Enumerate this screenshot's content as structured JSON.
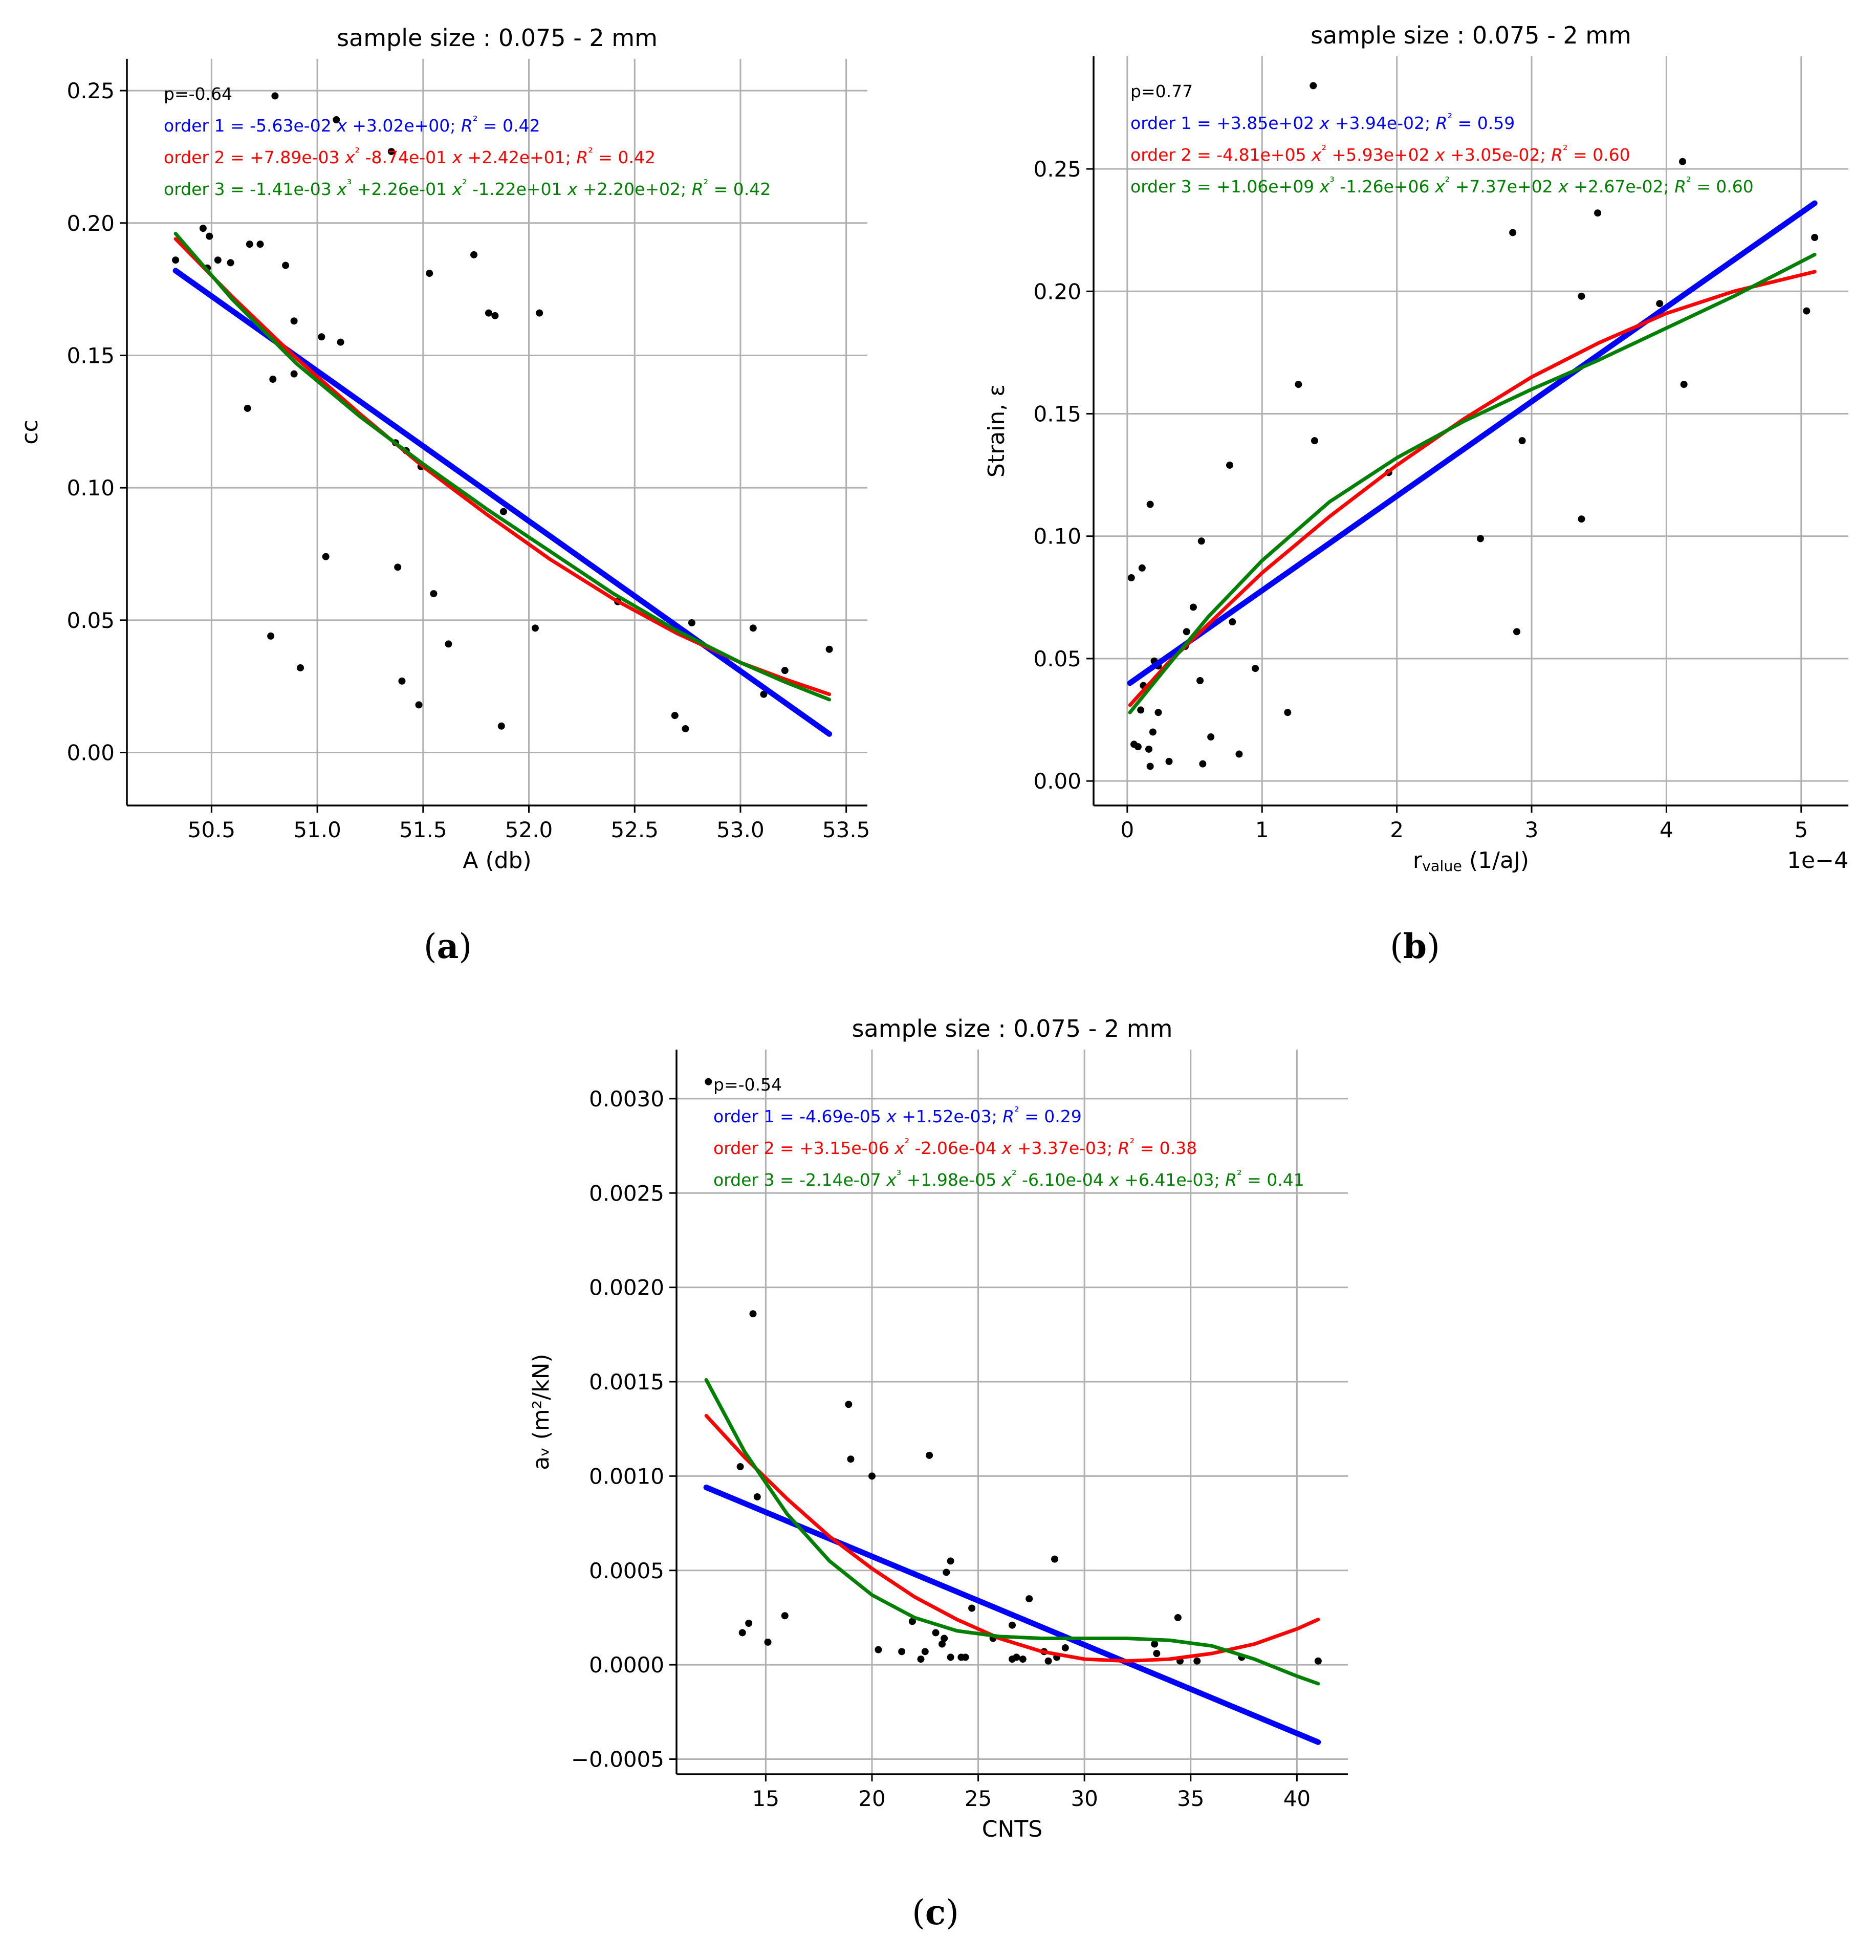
{
  "colors": {
    "background": "#ffffff",
    "points": "#000000",
    "grid": "#b0b0b0",
    "axis": "#000000",
    "order1": "#0000ff",
    "order2": "#ff0000",
    "order3": "#008000"
  },
  "chart_data": [
    {
      "type": "scatter",
      "panel_label": "(a)",
      "title": "sample size : 0.075 - 2 mm",
      "xlabel": "A (db)",
      "ylabel": "cc",
      "xlim": [
        50.1,
        53.6
      ],
      "ylim": [
        -0.02,
        0.262
      ],
      "xticks": [
        50.5,
        51.0,
        51.5,
        52.0,
        52.5,
        53.0,
        53.5
      ],
      "yticks": [
        0.0,
        0.05,
        0.1,
        0.15,
        0.2,
        0.25
      ],
      "xtick_labels": [
        "50.5",
        "51.0",
        "51.5",
        "52.0",
        "52.5",
        "53.0",
        "53.5"
      ],
      "ytick_labels": [
        "0.00",
        "0.05",
        "0.10",
        "0.15",
        "0.20",
        "0.25"
      ],
      "scale_label": "",
      "grid": true,
      "annotations": {
        "p": "p=-0.64",
        "order1": "order 1 = -5.63e-02 x +3.02e+00;  R² = 0.42",
        "order2": "order 2 = +7.89e-03 x² -8.74e-01 x  +2.42e+01;  R² = 0.42",
        "order3": "order 3 = -1.41e-03 x³ +2.26e-01 x² -1.22e+01 x +2.20e+02;  R² = 0.42"
      },
      "fits": [
        {
          "name": "order 1",
          "color": "#0000ff",
          "x": [
            50.33,
            53.42
          ],
          "y": [
            0.182,
            0.007
          ]
        },
        {
          "name": "order 2",
          "color": "#ff0000",
          "x": [
            50.33,
            50.6,
            50.9,
            51.2,
            51.5,
            51.8,
            52.1,
            52.4,
            52.7,
            53.0,
            53.2,
            53.42
          ],
          "y": [
            0.194,
            0.172,
            0.149,
            0.128,
            0.108,
            0.09,
            0.073,
            0.058,
            0.045,
            0.034,
            0.028,
            0.022
          ]
        },
        {
          "name": "order 3",
          "color": "#008000",
          "x": [
            50.33,
            50.6,
            50.9,
            51.2,
            51.5,
            51.8,
            52.1,
            52.4,
            52.7,
            53.0,
            53.2,
            53.42
          ],
          "y": [
            0.196,
            0.171,
            0.147,
            0.127,
            0.109,
            0.092,
            0.076,
            0.06,
            0.046,
            0.034,
            0.027,
            0.02
          ]
        }
      ],
      "points": [
        {
          "x": 50.33,
          "y": 0.186
        },
        {
          "x": 50.46,
          "y": 0.198
        },
        {
          "x": 50.48,
          "y": 0.183
        },
        {
          "x": 50.49,
          "y": 0.195
        },
        {
          "x": 50.53,
          "y": 0.186
        },
        {
          "x": 50.59,
          "y": 0.185
        },
        {
          "x": 50.67,
          "y": 0.13
        },
        {
          "x": 50.68,
          "y": 0.192
        },
        {
          "x": 50.73,
          "y": 0.192
        },
        {
          "x": 50.78,
          "y": 0.044
        },
        {
          "x": 50.79,
          "y": 0.141
        },
        {
          "x": 50.8,
          "y": 0.248
        },
        {
          "x": 50.85,
          "y": 0.184
        },
        {
          "x": 50.89,
          "y": 0.163
        },
        {
          "x": 50.89,
          "y": 0.143
        },
        {
          "x": 50.92,
          "y": 0.032
        },
        {
          "x": 51.02,
          "y": 0.157
        },
        {
          "x": 51.04,
          "y": 0.074
        },
        {
          "x": 51.09,
          "y": 0.239
        },
        {
          "x": 51.11,
          "y": 0.155
        },
        {
          "x": 51.35,
          "y": 0.227
        },
        {
          "x": 51.37,
          "y": 0.117
        },
        {
          "x": 51.38,
          "y": 0.07
        },
        {
          "x": 51.4,
          "y": 0.027
        },
        {
          "x": 51.42,
          "y": 0.114
        },
        {
          "x": 51.48,
          "y": 0.018
        },
        {
          "x": 51.49,
          "y": 0.108
        },
        {
          "x": 51.53,
          "y": 0.181
        },
        {
          "x": 51.55,
          "y": 0.06
        },
        {
          "x": 51.62,
          "y": 0.041
        },
        {
          "x": 51.74,
          "y": 0.188
        },
        {
          "x": 51.81,
          "y": 0.166
        },
        {
          "x": 51.84,
          "y": 0.165
        },
        {
          "x": 51.87,
          "y": 0.01
        },
        {
          "x": 51.88,
          "y": 0.091
        },
        {
          "x": 52.03,
          "y": 0.047
        },
        {
          "x": 52.05,
          "y": 0.166
        },
        {
          "x": 52.42,
          "y": 0.057
        },
        {
          "x": 52.69,
          "y": 0.014
        },
        {
          "x": 52.74,
          "y": 0.009
        },
        {
          "x": 52.77,
          "y": 0.049
        },
        {
          "x": 53.06,
          "y": 0.047
        },
        {
          "x": 53.11,
          "y": 0.022
        },
        {
          "x": 53.21,
          "y": 0.031
        },
        {
          "x": 53.42,
          "y": 0.039
        }
      ]
    },
    {
      "type": "scatter",
      "panel_label": "(b)",
      "title": "sample size : 0.075 - 2 mm",
      "xlabel": "rvalue (1/aJ)",
      "xlabel_main": "r",
      "xlabel_sub": "value",
      "xlabel_rest": " (1/aJ)",
      "ylabel": "Strain, ε",
      "xlim": [
        -0.25,
        5.35
      ],
      "ylim": [
        -0.01,
        0.296
      ],
      "xticks": [
        0,
        1,
        2,
        3,
        4,
        5
      ],
      "yticks": [
        0.0,
        0.05,
        0.1,
        0.15,
        0.2,
        0.25
      ],
      "xtick_labels": [
        "0",
        "1",
        "2",
        "3",
        "4",
        "5"
      ],
      "ytick_labels": [
        "0.00",
        "0.05",
        "0.10",
        "0.15",
        "0.20",
        "0.25"
      ],
      "scale_label": "1e−4",
      "grid": true,
      "annotations": {
        "p": "p=0.77",
        "order1": "order 1 = +3.85e+02 x +3.94e-02;  R² = 0.59",
        "order2": "order 2 = -4.81e+05 x² +5.93e+02 x  +3.05e-02;  R² = 0.60",
        "order3": "order 3 = +1.06e+09 x³ -1.26e+06 x² +7.37e+02 x +2.67e-02;  R² = 0.60"
      },
      "fits": [
        {
          "name": "order 1",
          "color": "#0000ff",
          "x": [
            0.02,
            5.1
          ],
          "y": [
            0.04,
            0.236
          ]
        },
        {
          "name": "order 2",
          "color": "#ff0000",
          "x": [
            0.02,
            0.3,
            0.6,
            1.0,
            1.5,
            2.0,
            2.5,
            3.0,
            3.5,
            4.0,
            4.5,
            5.1
          ],
          "y": [
            0.031,
            0.048,
            0.064,
            0.085,
            0.108,
            0.129,
            0.148,
            0.165,
            0.179,
            0.191,
            0.2,
            0.208
          ]
        },
        {
          "name": "order 3",
          "color": "#008000",
          "x": [
            0.02,
            0.3,
            0.6,
            1.0,
            1.5,
            2.0,
            2.5,
            3.0,
            3.5,
            4.0,
            4.5,
            5.1
          ],
          "y": [
            0.028,
            0.047,
            0.067,
            0.09,
            0.114,
            0.132,
            0.147,
            0.16,
            0.172,
            0.185,
            0.198,
            0.215
          ]
        }
      ],
      "points": [
        {
          "x": 0.03,
          "y": 0.083
        },
        {
          "x": 0.05,
          "y": 0.015
        },
        {
          "x": 0.08,
          "y": 0.014
        },
        {
          "x": 0.1,
          "y": 0.029
        },
        {
          "x": 0.11,
          "y": 0.087
        },
        {
          "x": 0.12,
          "y": 0.039
        },
        {
          "x": 0.16,
          "y": 0.013
        },
        {
          "x": 0.17,
          "y": 0.113
        },
        {
          "x": 0.17,
          "y": 0.006
        },
        {
          "x": 0.19,
          "y": 0.02
        },
        {
          "x": 0.2,
          "y": 0.049
        },
        {
          "x": 0.23,
          "y": 0.047
        },
        {
          "x": 0.23,
          "y": 0.028
        },
        {
          "x": 0.31,
          "y": 0.008
        },
        {
          "x": 0.43,
          "y": 0.055
        },
        {
          "x": 0.44,
          "y": 0.061
        },
        {
          "x": 0.49,
          "y": 0.071
        },
        {
          "x": 0.54,
          "y": 0.041
        },
        {
          "x": 0.55,
          "y": 0.098
        },
        {
          "x": 0.56,
          "y": 0.007
        },
        {
          "x": 0.62,
          "y": 0.018
        },
        {
          "x": 0.76,
          "y": 0.129
        },
        {
          "x": 0.78,
          "y": 0.065
        },
        {
          "x": 0.83,
          "y": 0.011
        },
        {
          "x": 0.95,
          "y": 0.046
        },
        {
          "x": 1.19,
          "y": 0.028
        },
        {
          "x": 1.27,
          "y": 0.162
        },
        {
          "x": 1.38,
          "y": 0.284
        },
        {
          "x": 1.39,
          "y": 0.139
        },
        {
          "x": 1.94,
          "y": 0.126
        },
        {
          "x": 2.62,
          "y": 0.099
        },
        {
          "x": 2.86,
          "y": 0.224
        },
        {
          "x": 2.89,
          "y": 0.061
        },
        {
          "x": 2.93,
          "y": 0.139
        },
        {
          "x": 3.37,
          "y": 0.107
        },
        {
          "x": 3.37,
          "y": 0.198
        },
        {
          "x": 3.49,
          "y": 0.232
        },
        {
          "x": 3.95,
          "y": 0.195
        },
        {
          "x": 4.12,
          "y": 0.253
        },
        {
          "x": 4.13,
          "y": 0.162
        },
        {
          "x": 5.04,
          "y": 0.192
        },
        {
          "x": 5.1,
          "y": 0.222
        }
      ]
    },
    {
      "type": "scatter",
      "panel_label": "(c)",
      "title": "sample size : 0.075 - 2 mm",
      "xlabel": "CNTS",
      "ylabel": "aᵥ (m²/kN)",
      "xlim": [
        10.8,
        42.4
      ],
      "ylim": [
        -0.00058,
        0.00326
      ],
      "xticks": [
        15,
        20,
        25,
        30,
        35,
        40
      ],
      "yticks": [
        -0.0005,
        0.0,
        0.0005,
        0.001,
        0.0015,
        0.002,
        0.0025,
        0.003
      ],
      "xtick_labels": [
        "15",
        "20",
        "25",
        "30",
        "35",
        "40"
      ],
      "ytick_labels": [
        "−0.0005",
        "0.0000",
        "0.0005",
        "0.0010",
        "0.0015",
        "0.0020",
        "0.0025",
        "0.0030"
      ],
      "scale_label": "",
      "grid": true,
      "annotations": {
        "p": "p=-0.54",
        "order1": "order 1 = -4.69e-05 x +1.52e-03;  R² = 0.29",
        "order2": "order 2 = +3.15e-06 x² -2.06e-04 x  +3.37e-03;  R² = 0.38",
        "order3": "order 3 = -2.14e-07 x³ +1.98e-05 x² -6.10e-04 x +6.41e-03;  R² = 0.41"
      },
      "fits": [
        {
          "name": "order 1",
          "color": "#0000ff",
          "x": [
            12.2,
            41.0
          ],
          "y": [
            0.00094,
            -0.00041
          ]
        },
        {
          "name": "order 2",
          "color": "#ff0000",
          "x": [
            12.2,
            14.0,
            16.0,
            18.0,
            20.0,
            22.0,
            24.0,
            26.0,
            28.0,
            30.0,
            32.0,
            34.0,
            36.0,
            38.0,
            40.0,
            41.0
          ],
          "y": [
            0.00132,
            0.0011,
            0.00088,
            0.00068,
            0.00051,
            0.00036,
            0.00024,
            0.00014,
            7e-05,
            3e-05,
            2e-05,
            3e-05,
            6e-05,
            0.00011,
            0.00019,
            0.00024
          ]
        },
        {
          "name": "order 3",
          "color": "#008000",
          "x": [
            12.2,
            14.0,
            16.0,
            18.0,
            20.0,
            22.0,
            24.0,
            26.0,
            28.0,
            30.0,
            32.0,
            34.0,
            36.0,
            38.0,
            40.0,
            41.0
          ],
          "y": [
            0.00151,
            0.00113,
            0.0008,
            0.00055,
            0.00037,
            0.00025,
            0.00018,
            0.00015,
            0.00014,
            0.00014,
            0.00014,
            0.00013,
            0.0001,
            3e-05,
            -6e-05,
            -0.0001
          ]
        }
      ],
      "points": [
        {
          "x": 12.3,
          "y": 0.00309
        },
        {
          "x": 13.8,
          "y": 0.00105
        },
        {
          "x": 13.9,
          "y": 0.00017
        },
        {
          "x": 14.2,
          "y": 0.00022
        },
        {
          "x": 14.4,
          "y": 0.00186
        },
        {
          "x": 14.6,
          "y": 0.00089
        },
        {
          "x": 15.1,
          "y": 0.00012
        },
        {
          "x": 15.9,
          "y": 0.00026
        },
        {
          "x": 18.9,
          "y": 0.00138
        },
        {
          "x": 19.0,
          "y": 0.00109
        },
        {
          "x": 20.0,
          "y": 0.001
        },
        {
          "x": 20.3,
          "y": 8e-05
        },
        {
          "x": 21.4,
          "y": 7e-05
        },
        {
          "x": 21.9,
          "y": 0.00023
        },
        {
          "x": 22.3,
          "y": 3e-05
        },
        {
          "x": 22.5,
          "y": 7e-05
        },
        {
          "x": 22.7,
          "y": 0.00111
        },
        {
          "x": 23.0,
          "y": 0.00017
        },
        {
          "x": 23.3,
          "y": 0.00011
        },
        {
          "x": 23.4,
          "y": 0.00014
        },
        {
          "x": 23.5,
          "y": 0.00049
        },
        {
          "x": 23.7,
          "y": 0.00055
        },
        {
          "x": 23.7,
          "y": 4e-05
        },
        {
          "x": 24.2,
          "y": 4e-05
        },
        {
          "x": 24.4,
          "y": 4e-05
        },
        {
          "x": 24.7,
          "y": 0.0003
        },
        {
          "x": 25.7,
          "y": 0.00014
        },
        {
          "x": 26.6,
          "y": 0.00021
        },
        {
          "x": 26.6,
          "y": 3e-05
        },
        {
          "x": 26.8,
          "y": 4e-05
        },
        {
          "x": 27.1,
          "y": 3e-05
        },
        {
          "x": 27.4,
          "y": 0.00035
        },
        {
          "x": 28.1,
          "y": 7e-05
        },
        {
          "x": 28.3,
          "y": 2e-05
        },
        {
          "x": 28.6,
          "y": 0.00056
        },
        {
          "x": 28.7,
          "y": 4e-05
        },
        {
          "x": 29.1,
          "y": 9e-05
        },
        {
          "x": 33.3,
          "y": 0.00011
        },
        {
          "x": 33.4,
          "y": 6e-05
        },
        {
          "x": 34.4,
          "y": 0.00025
        },
        {
          "x": 34.5,
          "y": 2e-05
        },
        {
          "x": 35.3,
          "y": 2e-05
        },
        {
          "x": 37.4,
          "y": 4e-05
        },
        {
          "x": 41.0,
          "y": 2e-05
        }
      ]
    }
  ]
}
